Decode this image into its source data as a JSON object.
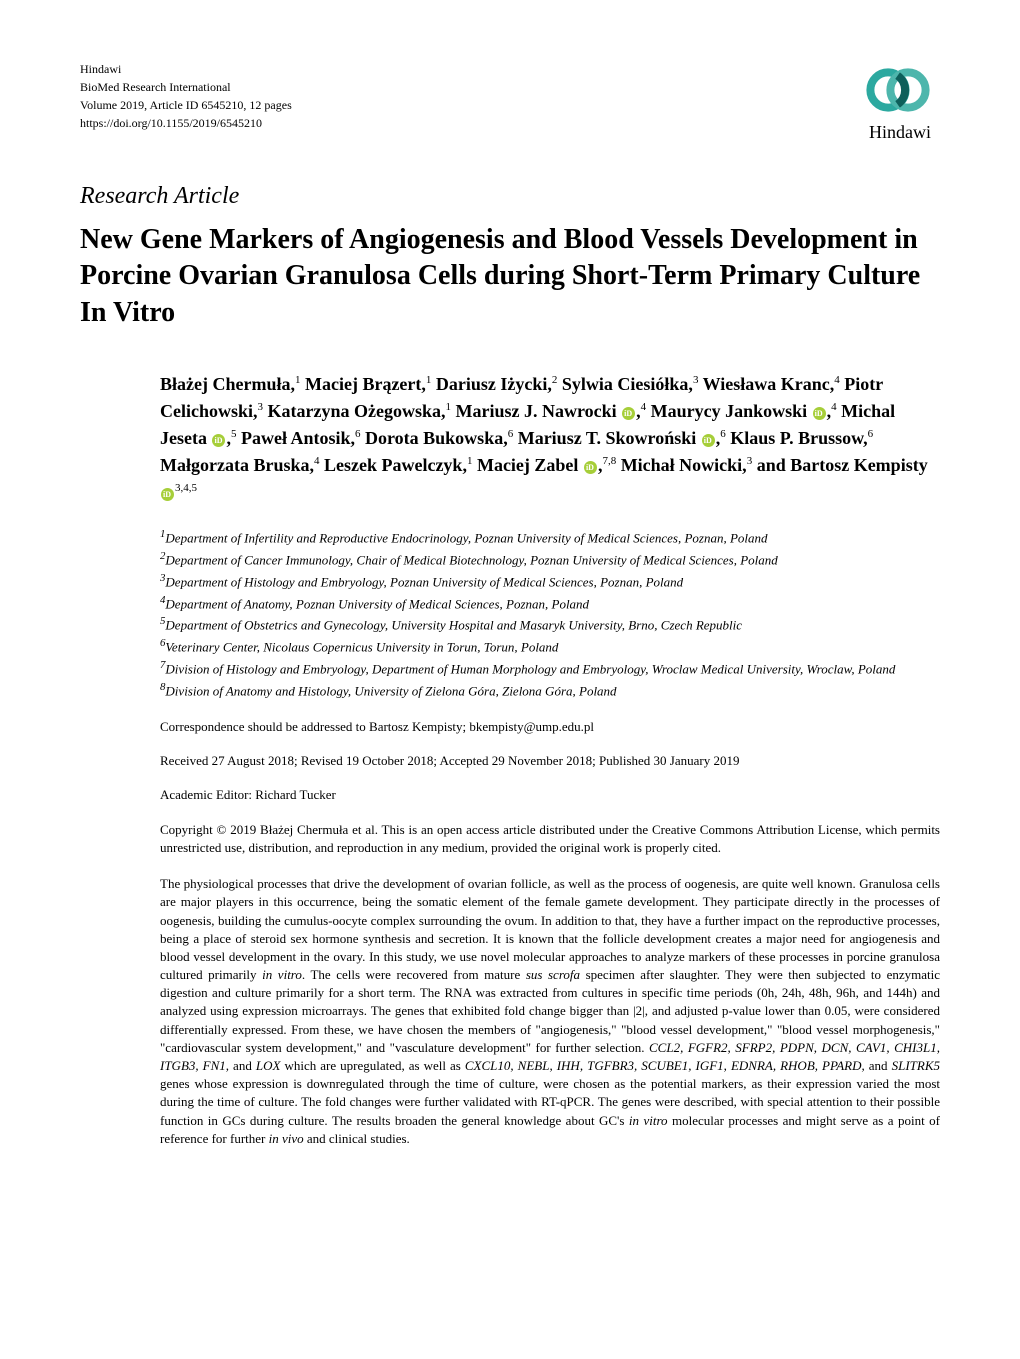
{
  "journal": {
    "publisher": "Hindawi",
    "name": "BioMed Research International",
    "volume": "Volume 2019, Article ID 6545210, 12 pages",
    "doi": "https://doi.org/10.1155/2019/6545210",
    "logo_text": "Hindawi",
    "logo_colors": {
      "ring1": "#2ca9a0",
      "ring2": "#4db6ac",
      "ring3": "#0d5f5a"
    }
  },
  "article_type": "Research Article",
  "title": "New Gene Markers of Angiogenesis and Blood Vessels Development in Porcine Ovarian Granulosa Cells during Short-Term Primary Culture In Vitro",
  "authors_html": "Błażej Chermuła,<sup>1</sup> Maciej Brązert,<sup>1</sup> Dariusz Iżycki,<sup>2</sup> Sylwia Ciesiółka,<sup>3</sup> Wiesława Kranc,<sup>4</sup> Piotr Celichowski,<sup>3</sup> Katarzyna Ożegowska,<sup>1</sup> Mariusz J. Nawrocki <span class=\"orcid\" data-name=\"orcid-icon\" data-interactable=\"false\"></span>,<sup>4</sup> Maurycy Jankowski <span class=\"orcid\" data-name=\"orcid-icon\" data-interactable=\"false\"></span>,<sup>4</sup> Michal Jeseta <span class=\"orcid\" data-name=\"orcid-icon\" data-interactable=\"false\"></span>,<sup>5</sup> Paweł Antosik,<sup>6</sup> Dorota Bukowska,<sup>6</sup> Mariusz T. Skowroński <span class=\"orcid\" data-name=\"orcid-icon\" data-interactable=\"false\"></span>,<sup>6</sup> Klaus P. Brussow,<sup>6</sup> Małgorzata Bruska,<sup>4</sup> Leszek Pawelczyk,<sup>1</sup> Maciej Zabel <span class=\"orcid\" data-name=\"orcid-icon\" data-interactable=\"false\"></span>,<sup>7,8</sup> Michał Nowicki,<sup>3</sup> and Bartosz Kempisty <span class=\"orcid\" data-name=\"orcid-icon\" data-interactable=\"false\"></span><sup>3,4,5</sup>",
  "affiliations": [
    "Department of Infertility and Reproductive Endocrinology, Poznan University of Medical Sciences, Poznan, Poland",
    "Department of Cancer Immunology, Chair of Medical Biotechnology, Poznan University of Medical Sciences, Poland",
    "Department of Histology and Embryology, Poznan University of Medical Sciences, Poznan, Poland",
    "Department of Anatomy, Poznan University of Medical Sciences, Poznan, Poland",
    "Department of Obstetrics and Gynecology, University Hospital and Masaryk University, Brno, Czech Republic",
    "Veterinary Center, Nicolaus Copernicus University in Torun, Torun, Poland",
    "Division of Histology and Embryology, Department of Human Morphology and Embryology, Wroclaw Medical University, Wroclaw, Poland",
    "Division of Anatomy and Histology, University of Zielona Góra, Zielona Góra, Poland"
  ],
  "correspondence": "Correspondence should be addressed to Bartosz Kempisty; bkempisty@ump.edu.pl",
  "dates": "Received 27 August 2018; Revised 19 October 2018; Accepted 29 November 2018; Published 30 January 2019",
  "editor": "Academic Editor: Richard Tucker",
  "copyright": "Copyright © 2019 Błażej Chermuła et al. This is an open access article distributed under the Creative Commons Attribution License, which permits unrestricted use, distribution, and reproduction in any medium, provided the original work is properly cited.",
  "abstract_html": "The physiological processes that drive the development of ovarian follicle, as well as the process of oogenesis, are quite well known. Granulosa cells are major players in this occurrence, being the somatic element of the female gamete development. They participate directly in the processes of oogenesis, building the cumulus-oocyte complex surrounding the ovum. In addition to that, they have a further impact on the reproductive processes, being a place of steroid sex hormone synthesis and secretion. It is known that the follicle development creates a major need for angiogenesis and blood vessel development in the ovary. In this study, we use novel molecular approaches to analyze markers of these processes in porcine granulosa cultured primarily <i>in vitro</i>. The cells were recovered from mature <i>sus scrofa</i> specimen after slaughter. They were then subjected to enzymatic digestion and culture primarily for a short term. The RNA was extracted from cultures in specific time periods (0h, 24h, 48h, 96h, and 144h) and analyzed using expression microarrays. The genes that exhibited fold change bigger than |2|, and adjusted p-value lower than 0.05, were considered differentially expressed. From these, we have chosen the members of \"angiogenesis,\" \"blood vessel development,\" \"blood vessel morphogenesis,\" \"cardiovascular system development,\" and \"vasculature development\" for further selection. <i>CCL2, FGFR2, SFRP2, PDPN, DCN, CAV1, CHI3L1, ITGB3, FN1,</i> and <i>LOX</i> which are upregulated, as well as <i>CXCL10, NEBL, IHH, TGFBR3, SCUBE1, IGF1, EDNRA, RHOB, PPARD,</i> and <i>SLITRK5</i> genes whose expression is downregulated through the time of culture, were chosen as the potential markers, as their expression varied the most during the time of culture. The fold changes were further validated with RT-qPCR. The genes were described, with special attention to their possible function in GCs during culture. The results broaden the general knowledge about GC's <i>in vitro</i> molecular processes and might serve as a point of reference for further <i>in vivo</i> and clinical studies."
}
